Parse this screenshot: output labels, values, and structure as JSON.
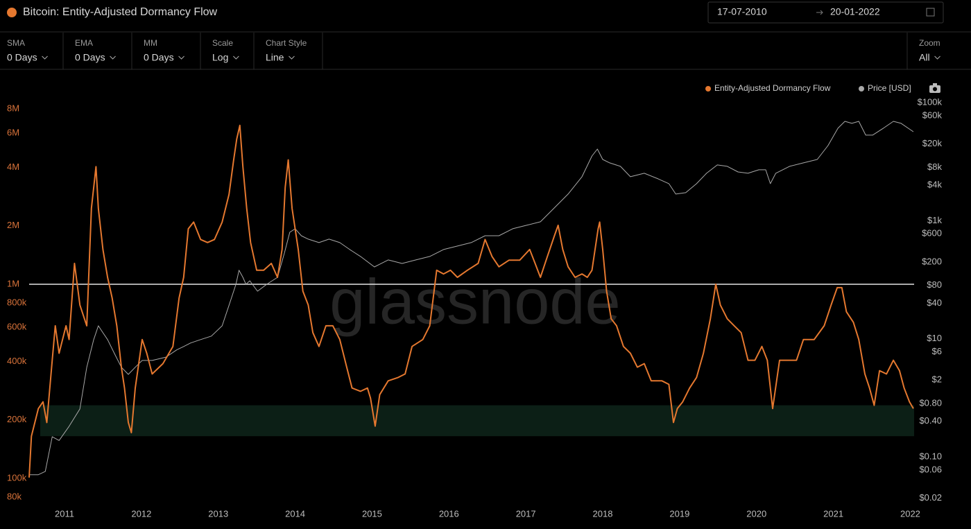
{
  "date_range": {
    "start": "17-07-2010",
    "end": "20-01-2022"
  },
  "controls": [
    {
      "label": "SMA",
      "value": "0 Days"
    },
    {
      "label": "EMA",
      "value": "0 Days"
    },
    {
      "label": "MM",
      "value": "0 Days"
    },
    {
      "label": "Scale",
      "value": "Log"
    },
    {
      "label": "Chart Style",
      "value": "Line"
    }
  ],
  "zoom": {
    "label": "Zoom",
    "value": "All"
  },
  "chart_data": {
    "type": "line",
    "title": "Bitcoin: Entity-Adjusted Dormancy Flow",
    "watermark": "glassnode",
    "log_scale": true,
    "grid": false,
    "legend": "top-right",
    "xlim": [
      2010.54,
      2022.05
    ],
    "xticks": [
      2011,
      2012,
      2013,
      2014,
      2015,
      2016,
      2017,
      2018,
      2019,
      2020,
      2021,
      2022
    ],
    "ylim": [
      72000,
      9200000
    ],
    "yticks": [
      {
        "value": 80000,
        "label": "80k"
      },
      {
        "value": 100000,
        "label": "100k"
      },
      {
        "value": 200000,
        "label": "200k"
      },
      {
        "value": 400000,
        "label": "400k"
      },
      {
        "value": 600000,
        "label": "600k"
      },
      {
        "value": 800000,
        "label": "800k"
      },
      {
        "value": 1000000,
        "label": "1M"
      },
      {
        "value": 2000000,
        "label": "2M"
      },
      {
        "value": 4000000,
        "label": "4M"
      },
      {
        "value": 6000000,
        "label": "6M"
      },
      {
        "value": 8000000,
        "label": "8M"
      }
    ],
    "y2lim": [
      0.0147,
      124000
    ],
    "y2ticks": [
      {
        "value": 0.02,
        "label": "$0.02"
      },
      {
        "value": 0.06,
        "label": "$0.06"
      },
      {
        "value": 0.1,
        "label": "$0.10"
      },
      {
        "value": 0.4,
        "label": "$0.40"
      },
      {
        "value": 0.8,
        "label": "$0.80"
      },
      {
        "value": 2,
        "label": "$2"
      },
      {
        "value": 6,
        "label": "$6"
      },
      {
        "value": 10,
        "label": "$10"
      },
      {
        "value": 40,
        "label": "$40"
      },
      {
        "value": 80,
        "label": "$80"
      },
      {
        "value": 200,
        "label": "$200"
      },
      {
        "value": 600,
        "label": "$600"
      },
      {
        "value": 1000,
        "label": "$1k"
      },
      {
        "value": 4000,
        "label": "$4k"
      },
      {
        "value": 8000,
        "label": "$8k"
      },
      {
        "value": 20000,
        "label": "$20k"
      },
      {
        "value": 60000,
        "label": "$60k"
      },
      {
        "value": 100000,
        "label": "$100k"
      }
    ],
    "reference_line": {
      "value": 1000000,
      "color": "#e6e6e6"
    },
    "band": {
      "range": [
        165000,
        238000
      ],
      "color": "#0c1f16"
    },
    "series": [
      {
        "name": "Entity-Adjusted Dormancy Flow",
        "color": "#e5782f",
        "x": [
          2010.54,
          2010.57,
          2010.66,
          2010.72,
          2010.77,
          2010.84,
          2010.88,
          2010.93,
          2011.02,
          2011.06,
          2011.13,
          2011.2,
          2011.29,
          2011.35,
          2011.41,
          2011.44,
          2011.5,
          2011.56,
          2011.62,
          2011.68,
          2011.74,
          2011.78,
          2011.83,
          2011.87,
          2011.92,
          2012.01,
          2012.07,
          2012.14,
          2012.28,
          2012.41,
          2012.49,
          2012.55,
          2012.61,
          2012.68,
          2012.77,
          2012.86,
          2012.95,
          2013.05,
          2013.14,
          2013.2,
          2013.24,
          2013.28,
          2013.32,
          2013.37,
          2013.42,
          2013.5,
          2013.59,
          2013.69,
          2013.77,
          2013.83,
          2013.87,
          2013.91,
          2013.96,
          2014.04,
          2014.1,
          2014.17,
          2014.23,
          2014.31,
          2014.4,
          2014.49,
          2014.58,
          2014.67,
          2014.74,
          2014.85,
          2014.94,
          2014.98,
          2015.04,
          2015.1,
          2015.21,
          2015.34,
          2015.43,
          2015.52,
          2015.66,
          2015.75,
          2015.84,
          2015.93,
          2016.02,
          2016.11,
          2016.24,
          2016.38,
          2016.47,
          2016.56,
          2016.65,
          2016.78,
          2016.92,
          2017.05,
          2017.12,
          2017.19,
          2017.28,
          2017.37,
          2017.42,
          2017.48,
          2017.55,
          2017.64,
          2017.73,
          2017.8,
          2017.86,
          2017.94,
          2017.96,
          2018.0,
          2018.05,
          2018.11,
          2018.18,
          2018.27,
          2018.36,
          2018.45,
          2018.54,
          2018.63,
          2018.77,
          2018.86,
          2018.92,
          2018.97,
          2019.04,
          2019.13,
          2019.22,
          2019.31,
          2019.4,
          2019.47,
          2019.53,
          2019.62,
          2019.71,
          2019.8,
          2019.89,
          2019.98,
          2020.07,
          2020.14,
          2020.21,
          2020.3,
          2020.43,
          2020.52,
          2020.61,
          2020.75,
          2020.88,
          2020.97,
          2021.05,
          2021.11,
          2021.17,
          2021.26,
          2021.33,
          2021.41,
          2021.47,
          2021.53,
          2021.6,
          2021.69,
          2021.78,
          2021.86,
          2021.92,
          2021.99,
          2022.04
        ],
        "values": [
          101000,
          165000,
          229000,
          248000,
          194000,
          406000,
          611000,
          441000,
          611000,
          519000,
          1280000,
          782000,
          611000,
          2460000,
          4030000,
          2460000,
          1510000,
          1085000,
          849000,
          611000,
          374000,
          292000,
          194000,
          172000,
          292000,
          519000,
          441000,
          345000,
          390000,
          478000,
          849000,
          1085000,
          1930000,
          2090000,
          1700000,
          1640000,
          1700000,
          2090000,
          2900000,
          4370000,
          5590000,
          6580000,
          4030000,
          2460000,
          1640000,
          1180000,
          1180000,
          1280000,
          1085000,
          1510000,
          3150000,
          4370000,
          2460000,
          1510000,
          921000,
          782000,
          563000,
          478000,
          611000,
          611000,
          519000,
          374000,
          292000,
          281000,
          292000,
          259000,
          186000,
          270000,
          318000,
          331000,
          345000,
          478000,
          519000,
          611000,
          1180000,
          1130000,
          1180000,
          1085000,
          1180000,
          1280000,
          1700000,
          1390000,
          1230000,
          1330000,
          1330000,
          1510000,
          1280000,
          1085000,
          1390000,
          1770000,
          2010000,
          1510000,
          1230000,
          1085000,
          1130000,
          1085000,
          1180000,
          1930000,
          2090000,
          1510000,
          921000,
          664000,
          611000,
          478000,
          441000,
          374000,
          390000,
          318000,
          318000,
          305000,
          194000,
          229000,
          248000,
          292000,
          331000,
          441000,
          664000,
          1000000,
          782000,
          664000,
          611000,
          563000,
          406000,
          406000,
          478000,
          406000,
          229000,
          406000,
          406000,
          406000,
          519000,
          519000,
          611000,
          782000,
          960000,
          960000,
          721000,
          637000,
          519000,
          345000,
          292000,
          238000,
          359000,
          345000,
          406000,
          359000,
          292000,
          248000,
          229000
        ]
      },
      {
        "name": "Price [USD]",
        "color": "#a8a8a8",
        "axis": "y2",
        "x": [
          2010.54,
          2010.66,
          2010.75,
          2010.84,
          2010.93,
          2011.06,
          2011.2,
          2011.29,
          2011.38,
          2011.44,
          2011.5,
          2011.56,
          2011.65,
          2011.74,
          2011.83,
          2011.92,
          2012.01,
          2012.14,
          2012.32,
          2012.46,
          2012.55,
          2012.64,
          2012.77,
          2012.91,
          2013.05,
          2013.14,
          2013.23,
          2013.27,
          2013.32,
          2013.36,
          2013.41,
          2013.51,
          2013.63,
          2013.77,
          2013.86,
          2013.93,
          2014.0,
          2014.08,
          2014.17,
          2014.31,
          2014.44,
          2014.58,
          2014.71,
          2014.85,
          2015.03,
          2015.21,
          2015.39,
          2015.57,
          2015.75,
          2015.93,
          2016.11,
          2016.29,
          2016.47,
          2016.65,
          2016.83,
          2017.01,
          2017.19,
          2017.37,
          2017.55,
          2017.73,
          2017.86,
          2017.93,
          2018.0,
          2018.09,
          2018.23,
          2018.36,
          2018.54,
          2018.72,
          2018.86,
          2018.95,
          2019.08,
          2019.22,
          2019.35,
          2019.49,
          2019.62,
          2019.76,
          2019.89,
          2020.03,
          2020.12,
          2020.18,
          2020.25,
          2020.43,
          2020.61,
          2020.79,
          2020.93,
          2021.06,
          2021.15,
          2021.24,
          2021.33,
          2021.42,
          2021.51,
          2021.65,
          2021.78,
          2021.88,
          2022.04
        ],
        "values": [
          0.05,
          0.05,
          0.057,
          0.22,
          0.19,
          0.33,
          0.65,
          3.3,
          9.7,
          16.6,
          12.7,
          9.7,
          5.6,
          3.3,
          2.5,
          3.3,
          4.3,
          4.3,
          4.9,
          6.5,
          7.4,
          8.5,
          9.7,
          11.1,
          16.6,
          37,
          84,
          145,
          110,
          84,
          96,
          64,
          84,
          110,
          284,
          638,
          731,
          557,
          487,
          426,
          487,
          426,
          325,
          248,
          165,
          217,
          189,
          217,
          248,
          325,
          372,
          426,
          557,
          557,
          731,
          837,
          958,
          1645,
          2826,
          5550,
          12470,
          16350,
          10900,
          9530,
          8320,
          5550,
          6350,
          5120,
          4240,
          2826,
          2980,
          4240,
          6350,
          8790,
          8320,
          6700,
          6350,
          7280,
          7280,
          4240,
          6350,
          8320,
          9530,
          10900,
          18700,
          36800,
          48200,
          44500,
          48200,
          28100,
          28100,
          36800,
          48200,
          44500,
          32100
        ]
      }
    ]
  }
}
